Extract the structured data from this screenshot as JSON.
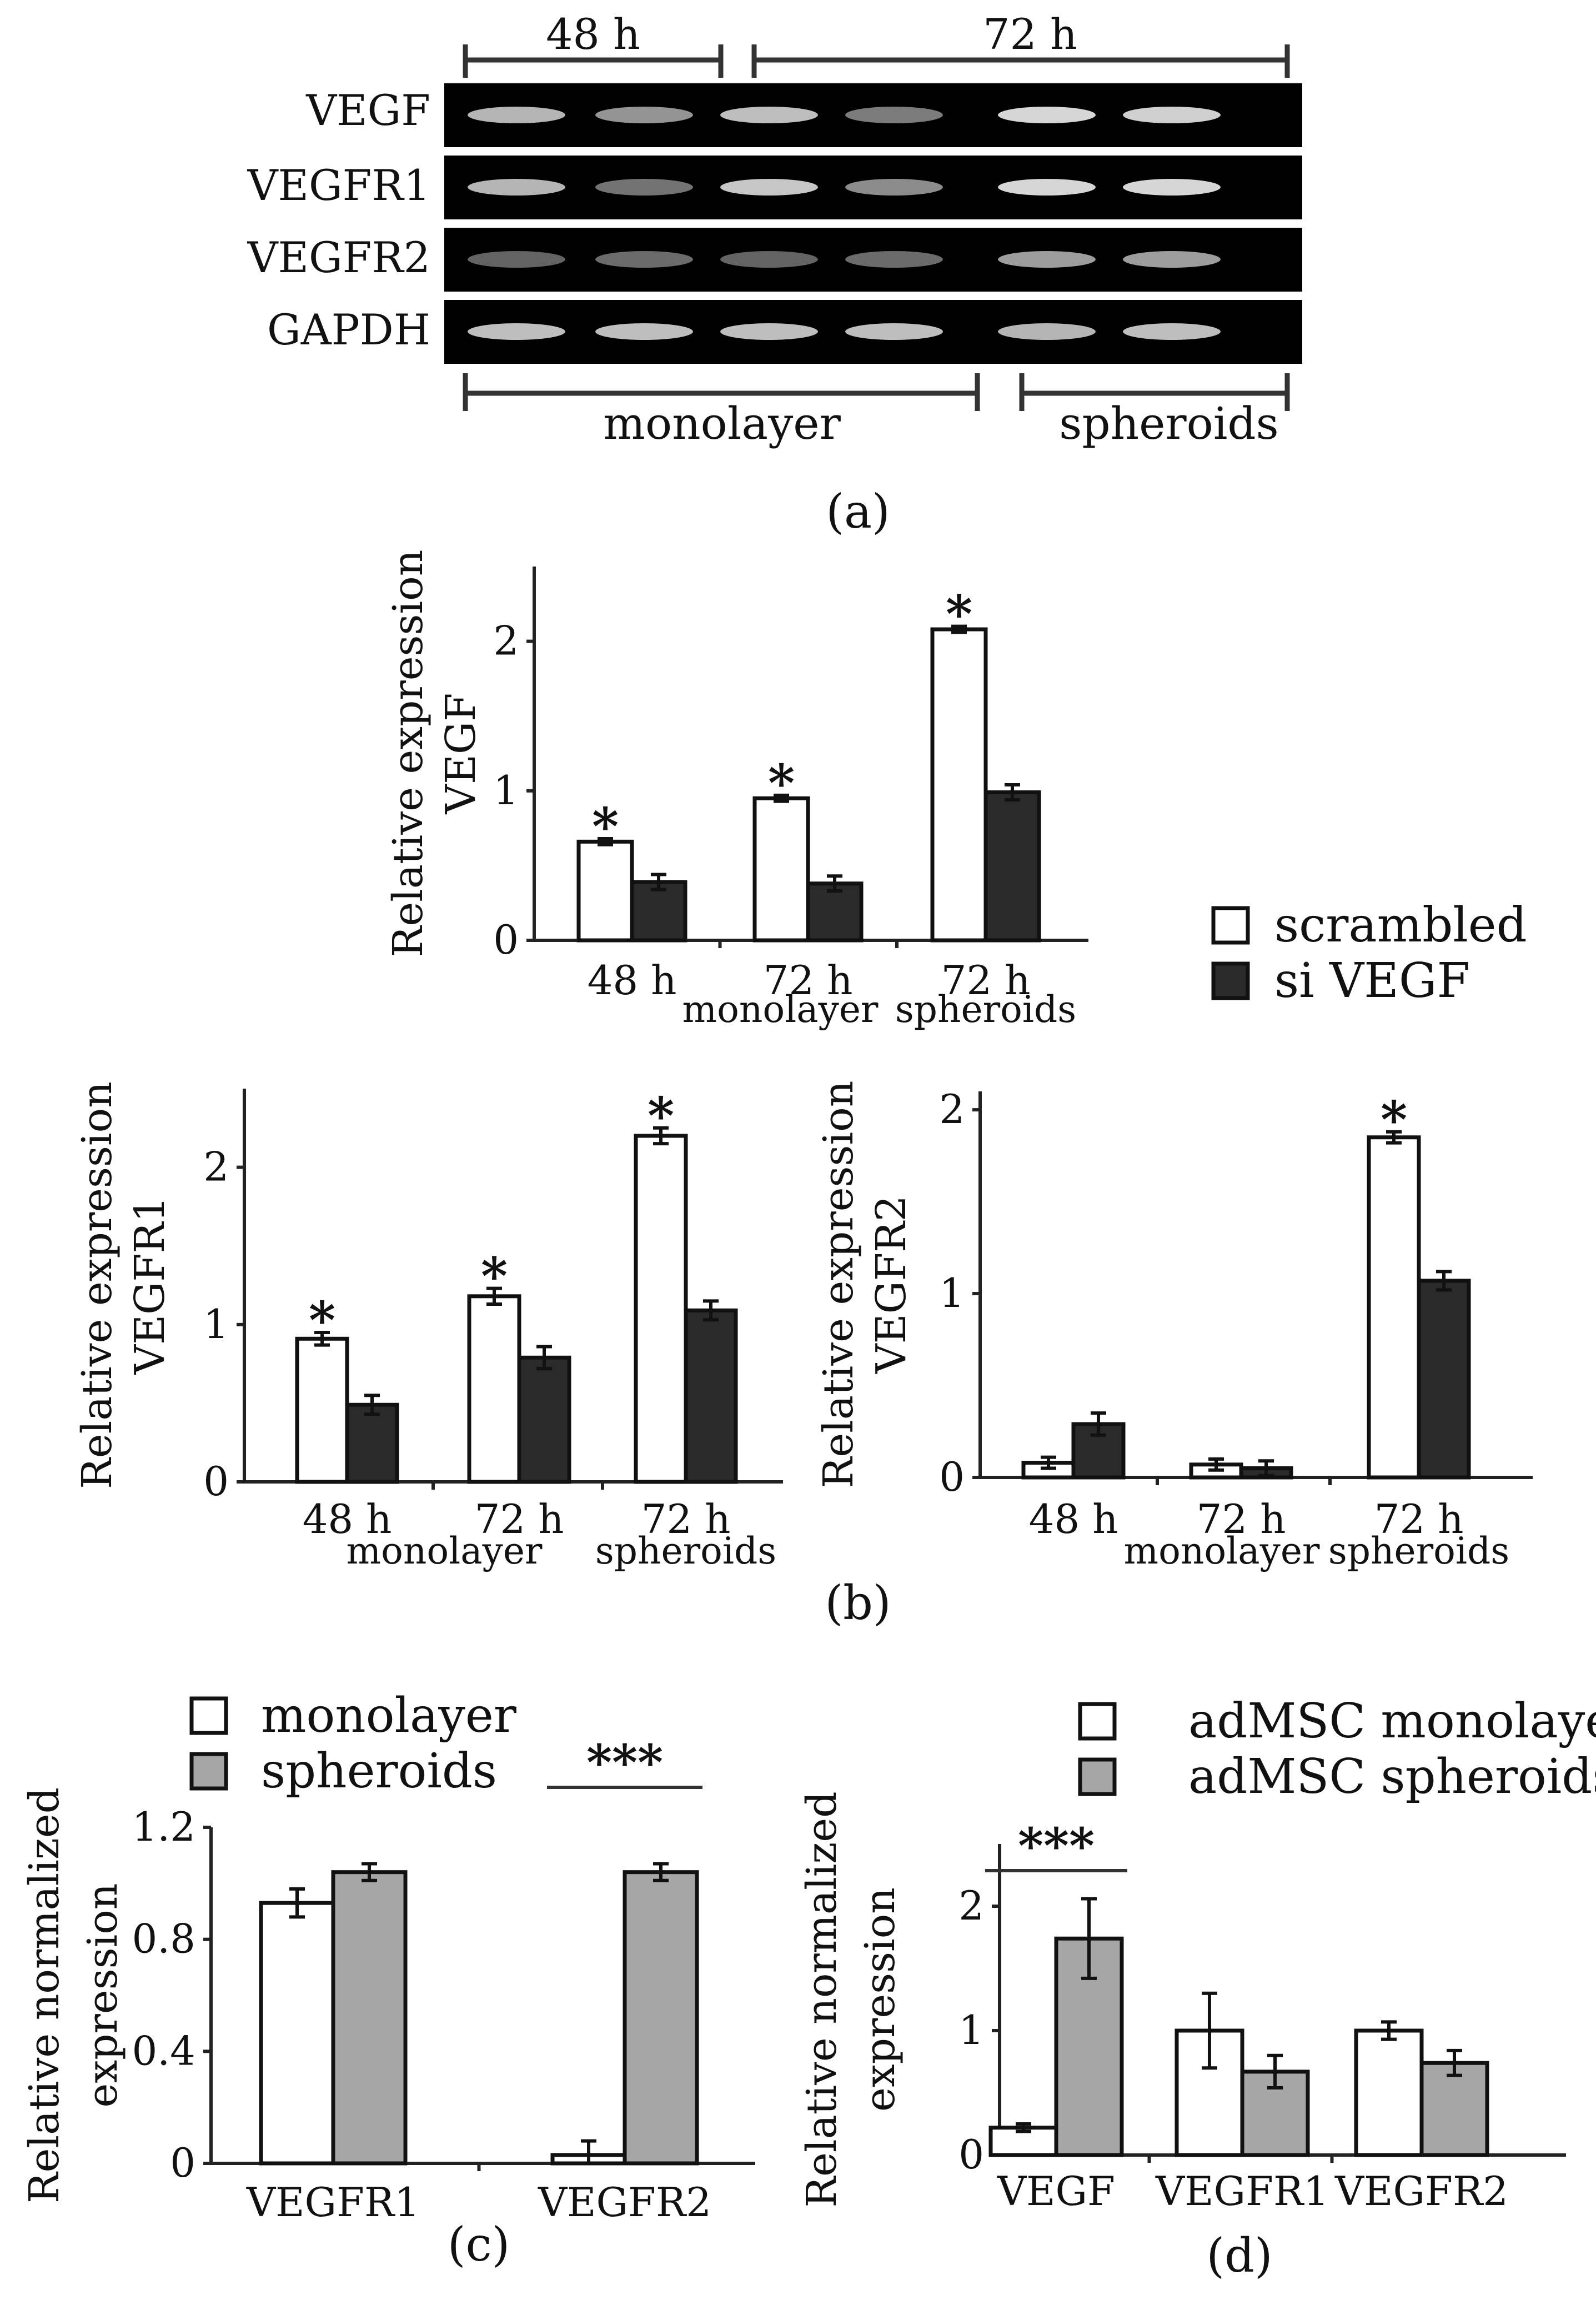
{
  "gel": {
    "top_groups": [
      "48 h",
      "72 h"
    ],
    "rows": [
      "VEGF",
      "VEGFR1",
      "VEGFR2",
      "GAPDH"
    ],
    "bottom_groups": [
      "monolayer",
      "spheroids"
    ],
    "band_intensity": [
      [
        0.75,
        0.55,
        0.8,
        0.4,
        0.95,
        0.9
      ],
      [
        0.75,
        0.35,
        0.85,
        0.5,
        0.95,
        0.95
      ],
      [
        0.25,
        0.3,
        0.25,
        0.3,
        0.6,
        0.6
      ],
      [
        0.8,
        0.8,
        0.8,
        0.8,
        0.75,
        0.8
      ]
    ],
    "panel_label": "(a)"
  },
  "legend_b": {
    "items": [
      "scrambled",
      "si VEGF"
    ],
    "colors": [
      "#ffffff",
      "#2a2a2a"
    ]
  },
  "legend_c": {
    "items": [
      "monolayer",
      "spheroids"
    ],
    "colors": [
      "#ffffff",
      "#a6a6a6"
    ]
  },
  "legend_d": {
    "items": [
      "adMSC monolayer",
      "adMSC spheroids"
    ],
    "colors": [
      "#ffffff",
      "#a6a6a6"
    ]
  },
  "panel_labels": {
    "b": "(b)",
    "c": "(c)",
    "d": "(d)"
  },
  "chart_data": [
    {
      "id": "b1",
      "type": "bar",
      "ylabel": "Relative expression VEGF",
      "ylabel_lines": [
        "Relative  expression",
        "VEGF"
      ],
      "categories": [
        "48 h",
        "72 h",
        "72 h"
      ],
      "group_labels": [
        "monolayer",
        "spheroids"
      ],
      "yticks": [
        "0",
        "1",
        "2"
      ],
      "ytick_values": [
        0,
        1,
        2
      ],
      "ylim": [
        0,
        2.5
      ],
      "series": [
        {
          "name": "scrambled",
          "values": [
            0.66,
            0.95,
            2.08
          ],
          "errors": [
            0.02,
            0.02,
            0.02
          ]
        },
        {
          "name": "si VEGF",
          "values": [
            0.39,
            0.38,
            0.99
          ],
          "errors": [
            0.05,
            0.05,
            0.05
          ]
        }
      ],
      "significance": [
        "*",
        "*",
        "*"
      ]
    },
    {
      "id": "b2",
      "type": "bar",
      "ylabel": "Relative expression VEGFR1",
      "ylabel_lines": [
        "Relative expression",
        "VEGFR1"
      ],
      "categories": [
        "48 h",
        "72 h",
        "72 h"
      ],
      "group_labels": [
        "monolayer",
        "spheroids"
      ],
      "yticks": [
        "0",
        "1",
        "2"
      ],
      "ytick_values": [
        0,
        1,
        2
      ],
      "ylim": [
        0,
        2.5
      ],
      "series": [
        {
          "name": "scrambled",
          "values": [
            0.91,
            1.18,
            2.2
          ],
          "errors": [
            0.04,
            0.05,
            0.05
          ]
        },
        {
          "name": "si VEGF",
          "values": [
            0.49,
            0.79,
            1.09
          ],
          "errors": [
            0.06,
            0.07,
            0.06
          ]
        }
      ],
      "significance": [
        "*",
        "*",
        "*"
      ]
    },
    {
      "id": "b3",
      "type": "bar",
      "ylabel": "Relative expression VEGFR2",
      "ylabel_lines": [
        "Relative expression",
        "VEGFR2"
      ],
      "categories": [
        "48 h",
        "72 h",
        "72 h"
      ],
      "group_labels": [
        "monolayer",
        "spheroids"
      ],
      "yticks": [
        "0",
        "1",
        "2"
      ],
      "ytick_values": [
        0,
        1,
        2
      ],
      "ylim": [
        0,
        2.1
      ],
      "series": [
        {
          "name": "scrambled",
          "values": [
            0.08,
            0.07,
            1.85
          ],
          "errors": [
            0.03,
            0.03,
            0.03
          ]
        },
        {
          "name": "si VEGF",
          "values": [
            0.29,
            0.05,
            1.07
          ],
          "errors": [
            0.06,
            0.04,
            0.05
          ]
        }
      ],
      "significance": [
        "",
        "",
        "*"
      ]
    },
    {
      "id": "c",
      "type": "bar",
      "ylabel": "Relative normalized expression",
      "ylabel_lines": [
        "Relative normalized",
        "expression"
      ],
      "categories": [
        "VEGFR1",
        "VEGFR2"
      ],
      "yticks": [
        "0",
        "0.4",
        "0.8",
        "1.2"
      ],
      "ytick_values": [
        0,
        0.4,
        0.8,
        1.2
      ],
      "ylim": [
        0,
        1.2
      ],
      "series": [
        {
          "name": "monolayer",
          "values": [
            0.93,
            0.03
          ],
          "errors": [
            0.05,
            0.05
          ]
        },
        {
          "name": "spheroids",
          "values": [
            1.04,
            1.04
          ],
          "errors": [
            0.03,
            0.03
          ]
        }
      ],
      "significance_bar": {
        "category_index": 1,
        "label": "***"
      }
    },
    {
      "id": "d",
      "type": "bar",
      "ylabel": "Relative normalized expression",
      "ylabel_lines": [
        "Relative normalized",
        "expression"
      ],
      "categories": [
        "VEGF",
        "VEGFR1",
        "VEGFR2"
      ],
      "yticks": [
        "0",
        "1",
        "2"
      ],
      "ytick_values": [
        0,
        1,
        2
      ],
      "ylim": [
        0,
        2.5
      ],
      "series": [
        {
          "name": "adMSC monolayer",
          "values": [
            0.22,
            1.0,
            1.0
          ],
          "errors": [
            0.03,
            0.3,
            0.07
          ]
        },
        {
          "name": "adMSC spheroids",
          "values": [
            1.74,
            0.67,
            0.74
          ],
          "errors": [
            0.32,
            0.13,
            0.1
          ]
        }
      ],
      "significance_bar": {
        "category_index": 0,
        "label": "***"
      }
    }
  ]
}
